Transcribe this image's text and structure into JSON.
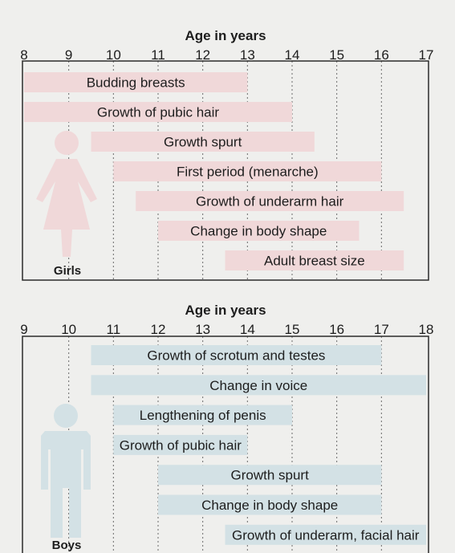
{
  "chart_data": [
    {
      "type": "bar",
      "orientation": "horizontal-range",
      "xlabel": "Age in years",
      "xlim": [
        8,
        17
      ],
      "ticks": [
        8,
        9,
        10,
        11,
        12,
        13,
        14,
        15,
        16,
        17
      ],
      "group_label": "Girls",
      "bar_color": "#f0d8d9",
      "figure_color": "#f0d8d9",
      "grid": true,
      "bars": [
        {
          "label": "Budding breasts",
          "start": 8,
          "end": 13
        },
        {
          "label": "Growth of pubic hair",
          "start": 8,
          "end": 14
        },
        {
          "label": "Growth spurt",
          "start": 9.5,
          "end": 14.5
        },
        {
          "label": "First period (menarche)",
          "start": 10,
          "end": 16
        },
        {
          "label": "Growth of underarm hair",
          "start": 10.5,
          "end": 16.5
        },
        {
          "label": "Change in body shape",
          "start": 11,
          "end": 15.5
        },
        {
          "label": "Adult breast size",
          "start": 12.5,
          "end": 16.5
        }
      ]
    },
    {
      "type": "bar",
      "orientation": "horizontal-range",
      "xlabel": "Age in years",
      "xlim": [
        9,
        18
      ],
      "ticks": [
        9,
        10,
        11,
        12,
        13,
        14,
        15,
        16,
        17,
        18
      ],
      "group_label": "Boys",
      "bar_color": "#d3e1e5",
      "figure_color": "#d3e1e5",
      "grid": true,
      "bars": [
        {
          "label": "Growth of scrotum and testes",
          "start": 10.5,
          "end": 17
        },
        {
          "label": "Change in voice",
          "start": 10.5,
          "end": 18
        },
        {
          "label": "Lengthening of penis",
          "start": 11,
          "end": 15
        },
        {
          "label": "Growth of pubic hair",
          "start": 11,
          "end": 14
        },
        {
          "label": "Growth spurt",
          "start": 12,
          "end": 17
        },
        {
          "label": "Change in body shape",
          "start": 12,
          "end": 17
        },
        {
          "label": "Growth of underarm, facial hair",
          "start": 13.5,
          "end": 18
        }
      ]
    }
  ]
}
